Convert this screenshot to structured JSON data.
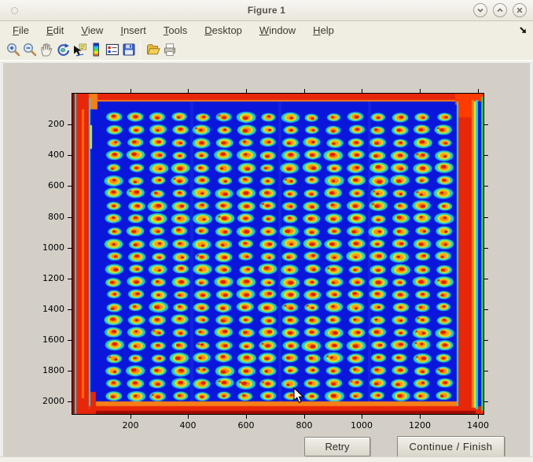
{
  "window": {
    "title": "Figure 1",
    "controls": [
      {
        "name": "minimize",
        "glyph": "chevron-down"
      },
      {
        "name": "maximize",
        "glyph": "chevron-up"
      },
      {
        "name": "close",
        "glyph": "x"
      }
    ]
  },
  "menu": {
    "items": [
      {
        "label": "File"
      },
      {
        "label": "Edit"
      },
      {
        "label": "View"
      },
      {
        "label": "Insert"
      },
      {
        "label": "Tools"
      },
      {
        "label": "Desktop"
      },
      {
        "label": "Window"
      },
      {
        "label": "Help"
      }
    ]
  },
  "toolbar": {
    "icons": [
      "zoom-in",
      "zoom-out",
      "pan",
      "rotate-3d",
      "data-cursor",
      "insert-colorbar",
      "insert-legend",
      "save-figure",
      "separator",
      "open-file",
      "print-figure"
    ]
  },
  "buttons": {
    "retry_label": "Retry",
    "continue_label": "Continue / Finish"
  },
  "chart_data": {
    "type": "heatmap",
    "title": "",
    "xlabel": "",
    "ylabel": "",
    "colormap": "jet",
    "xlim": [
      0,
      1420
    ],
    "ylim": [
      0,
      2080
    ],
    "y_axis": "reversed (image convention, origin at top-left)",
    "x_ticks": [
      200,
      400,
      600,
      800,
      1000,
      1200,
      1400
    ],
    "y_ticks": [
      200,
      400,
      600,
      800,
      1000,
      1200,
      1400,
      1600,
      1800,
      2000
    ],
    "grid_on": false,
    "tick_direction": "out",
    "description": "Jet-colormap intensity image of a scanned microtiter plate: a 16-column by 23-row grid of wells with hot red/orange centers surrounded by yellow and cyan halos on a cold deep-blue background; all four plate edges glow hot red/orange with thin cyan and yellow transition stripes.",
    "background_color": "#0A17DB",
    "well_grid": {
      "cols": 16,
      "rows": 23,
      "x_first": 144,
      "x_step": 76,
      "y_first": 153,
      "y_step": 82.3,
      "colors": {
        "halo_cyan": [
          "#23CBD4",
          "#2BD4C3",
          "#1FC9E0"
        ],
        "ring_yellow": [
          "#E8EC19",
          "#D9E81E",
          "#F2DE17"
        ],
        "core_orange": [
          "#FF9D13",
          "#FC8E0F"
        ],
        "hot_spot_red": "#DE1F06",
        "dark_spot_red": "#BE1200"
      }
    },
    "edge_bands": {
      "border_red": "#E8260A",
      "border_dark_red": "#9E0B00",
      "transition_cyan": "#22D8E4",
      "transition_yellow": "#EFEF2B",
      "transition_green": "#2FC447",
      "corner_orange": "#F57E16"
    }
  },
  "cursor": {
    "shape": "arrow-pointer",
    "tip_x": 374,
    "tip_y": 494
  }
}
